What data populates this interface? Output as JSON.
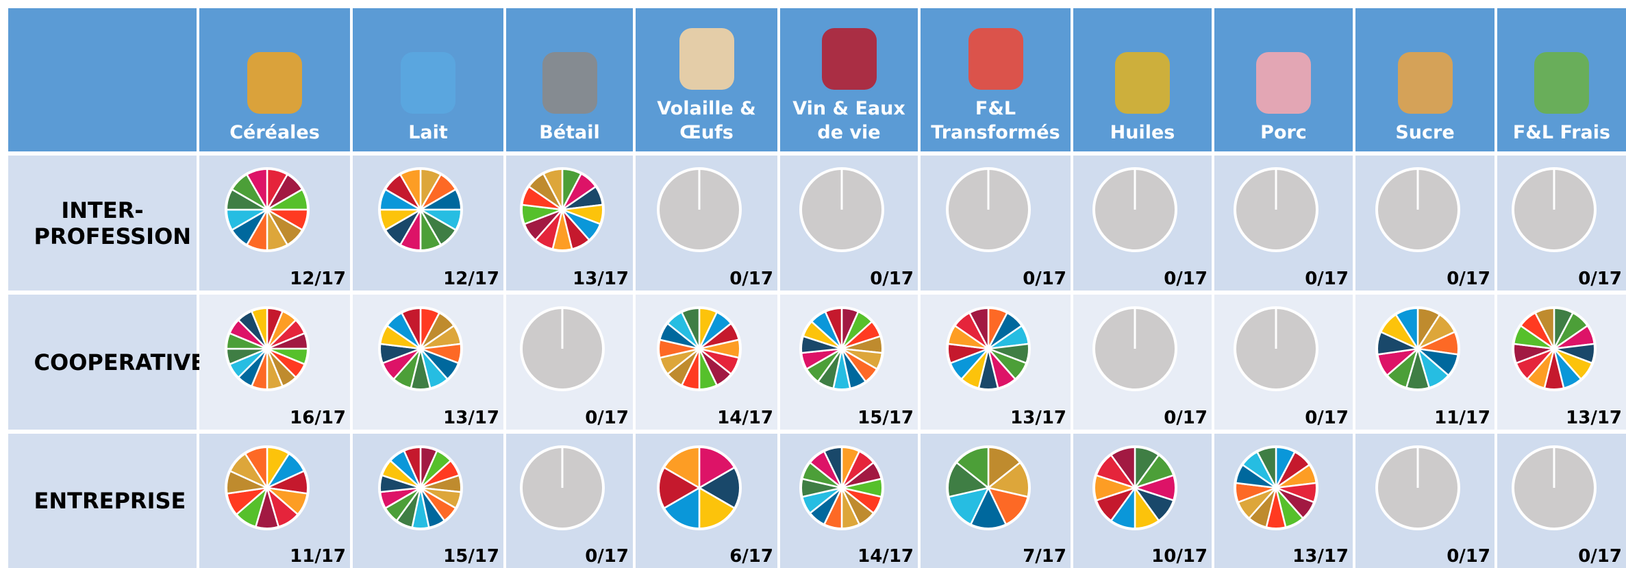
{
  "columns": [
    "Céréales",
    "Lait",
    "Bétail",
    "Volaille & Œufs",
    "Vin & Eaux de vie",
    "F&L Transformés",
    "Huiles",
    "Porc",
    "Sucre",
    "F&L Frais"
  ],
  "rows": [
    {
      "label": "INTER-PROFESSION",
      "cells": [
        {
          "value": 12,
          "label": "12/17"
        },
        {
          "value": 12,
          "label": "12/17"
        },
        {
          "value": 13,
          "label": "13/17"
        },
        {
          "value": 0,
          "label": "0/17"
        },
        {
          "value": 0,
          "label": "0/17"
        },
        {
          "value": 0,
          "label": "0/17"
        },
        {
          "value": 0,
          "label": "0/17"
        },
        {
          "value": 0,
          "label": "0/17"
        },
        {
          "value": 0,
          "label": "0/17"
        },
        {
          "value": 0,
          "label": "0/17"
        }
      ]
    },
    {
      "label": "COOPERATIVE",
      "cells": [
        {
          "value": 16,
          "label": "16/17"
        },
        {
          "value": 13,
          "label": "13/17"
        },
        {
          "value": 0,
          "label": "0/17"
        },
        {
          "value": 14,
          "label": "14/17"
        },
        {
          "value": 15,
          "label": "15/17"
        },
        {
          "value": 13,
          "label": "13/17"
        },
        {
          "value": 0,
          "label": "0/17"
        },
        {
          "value": 0,
          "label": "0/17"
        },
        {
          "value": 11,
          "label": "11/17"
        },
        {
          "value": 13,
          "label": "13/17"
        }
      ]
    },
    {
      "label": "ENTREPRISE",
      "cells": [
        {
          "value": 11,
          "label": "11/17"
        },
        {
          "value": 15,
          "label": "15/17"
        },
        {
          "value": 0,
          "label": "0/17"
        },
        {
          "value": 6,
          "label": "6/17"
        },
        {
          "value": 14,
          "label": "14/17"
        },
        {
          "value": 7,
          "label": "7/17"
        },
        {
          "value": 10,
          "label": "10/17"
        },
        {
          "value": 13,
          "label": "13/17"
        },
        {
          "value": 0,
          "label": "0/17"
        },
        {
          "value": 0,
          "label": "0/17"
        }
      ]
    }
  ],
  "slice_colors": [
    "#e5243b",
    "#dda63a",
    "#4c9f38",
    "#c5192d",
    "#ff3a21",
    "#26bde2",
    "#fcc30b",
    "#a21942",
    "#fd6925",
    "#dd1367",
    "#fd9d24",
    "#bf8b2e",
    "#3f7e44",
    "#0a97d9",
    "#56c02b",
    "#00689d",
    "#19486a"
  ],
  "empty_color": "#cdcbcb"
}
